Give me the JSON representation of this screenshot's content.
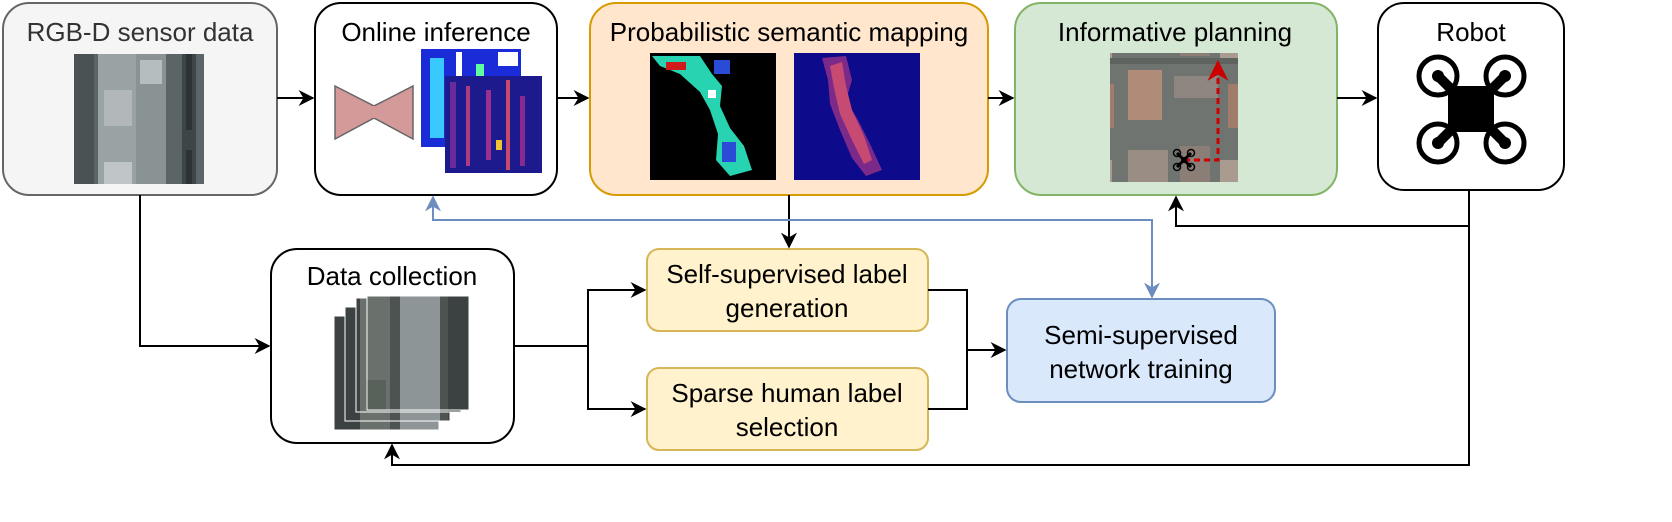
{
  "boxes": {
    "rgbd": {
      "title": "RGB-D sensor data"
    },
    "inference": {
      "title": "Online inference"
    },
    "mapping": {
      "title": "Probabilistic semantic mapping"
    },
    "planning": {
      "title": "Informative planning"
    },
    "robot": {
      "title": "Robot"
    },
    "collection": {
      "title": "Data collection"
    },
    "self_supervised": {
      "line1": "Self-supervised label",
      "line2": "generation"
    },
    "sparse_human": {
      "line1": "Sparse human label",
      "line2": "selection"
    },
    "training": {
      "line1": "Semi-supervised",
      "line2": "network training"
    }
  },
  "colors": {
    "rgbd_fill": "#f5f5f5",
    "rgbd_border": "#666666",
    "mapping_fill": "#ffe6cc",
    "mapping_border": "#d79b00",
    "planning_fill": "#d5e8d4",
    "planning_border": "#82b366",
    "label_fill": "#fff2cc",
    "label_border": "#d6b656",
    "training_fill": "#dae8fc",
    "training_border": "#6c8ebf",
    "network_fill": "#d49a9a",
    "feedback_arrow": "#6c8ebf",
    "planning_path": "#cc0000"
  },
  "icons": {
    "network": "encoder-decoder-network-icon",
    "robot": "quadcopter-icon",
    "planning_marker": "drone-marker-icon"
  }
}
